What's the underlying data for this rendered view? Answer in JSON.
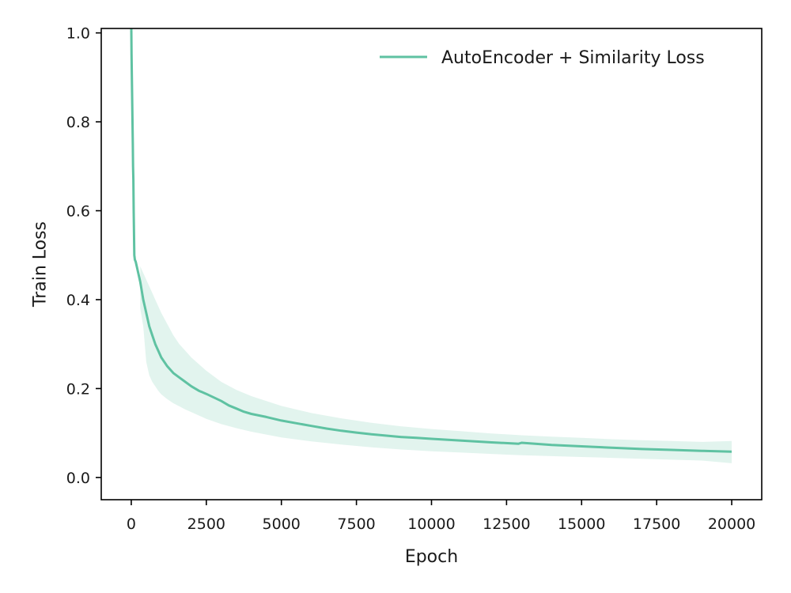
{
  "chart_data": {
    "type": "line",
    "title": "",
    "xlabel": "Epoch",
    "ylabel": "Train Loss",
    "xlim": [
      -1000,
      21000
    ],
    "ylim": [
      -0.05,
      1.01
    ],
    "xticks": [
      0,
      2500,
      5000,
      7500,
      10000,
      12500,
      15000,
      17500,
      20000
    ],
    "xtick_labels": [
      "0",
      "2500",
      "5000",
      "7500",
      "10000",
      "12500",
      "15000",
      "17500",
      "20000"
    ],
    "yticks": [
      0.0,
      0.2,
      0.4,
      0.6,
      0.8,
      1.0
    ],
    "ytick_labels": [
      "0.0",
      "0.2",
      "0.4",
      "0.6",
      "0.8",
      "1.0"
    ],
    "grid": false,
    "legend_position": "top-right",
    "series": [
      {
        "name": "AutoEncoder + Similarity Loss",
        "color": "#5fc2a2",
        "band_color": "#5fc2a2",
        "band_opacity": 0.18,
        "x": [
          0,
          10,
          20,
          30,
          40,
          50,
          60,
          70,
          80,
          90,
          100,
          120,
          150,
          200,
          250,
          300,
          350,
          400,
          500,
          600,
          700,
          800,
          900,
          1000,
          1200,
          1400,
          1600,
          1800,
          2000,
          2250,
          2500,
          2750,
          3000,
          3100,
          3250,
          3500,
          3750,
          4000,
          4500,
          5000,
          5500,
          6000,
          6500,
          7000,
          7500,
          8000,
          8500,
          9000,
          9500,
          10000,
          11000,
          12000,
          12900,
          13000,
          14000,
          15000,
          16000,
          17000,
          18000,
          19000,
          20000
        ],
        "y": [
          1.01,
          0.95,
          0.9,
          0.85,
          0.8,
          0.75,
          0.7,
          0.67,
          0.6,
          0.55,
          0.5,
          0.49,
          0.485,
          0.47,
          0.455,
          0.44,
          0.42,
          0.4,
          0.37,
          0.34,
          0.32,
          0.3,
          0.285,
          0.27,
          0.25,
          0.235,
          0.225,
          0.215,
          0.205,
          0.195,
          0.188,
          0.18,
          0.172,
          0.168,
          0.162,
          0.155,
          0.148,
          0.143,
          0.136,
          0.128,
          0.122,
          0.116,
          0.11,
          0.105,
          0.101,
          0.097,
          0.094,
          0.091,
          0.089,
          0.087,
          0.083,
          0.079,
          0.076,
          0.078,
          0.073,
          0.07,
          0.067,
          0.064,
          0.062,
          0.06,
          0.058
        ],
        "band_x": [
          300,
          400,
          500,
          600,
          700,
          800,
          900,
          1000,
          1200,
          1400,
          1600,
          1800,
          2000,
          2500,
          3000,
          3500,
          4000,
          5000,
          6000,
          7000,
          8000,
          9000,
          10000,
          11000,
          12000,
          13000,
          14000,
          15000,
          16000,
          17000,
          18000,
          19000,
          20000
        ],
        "band_lower": [
          0.38,
          0.34,
          0.26,
          0.23,
          0.215,
          0.205,
          0.195,
          0.187,
          0.176,
          0.167,
          0.16,
          0.153,
          0.147,
          0.132,
          0.12,
          0.111,
          0.103,
          0.09,
          0.081,
          0.074,
          0.068,
          0.063,
          0.059,
          0.056,
          0.053,
          0.05,
          0.048,
          0.046,
          0.044,
          0.042,
          0.04,
          0.038,
          0.032
        ],
        "band_upper": [
          0.475,
          0.46,
          0.445,
          0.43,
          0.415,
          0.4,
          0.385,
          0.37,
          0.345,
          0.32,
          0.3,
          0.285,
          0.27,
          0.24,
          0.215,
          0.197,
          0.183,
          0.161,
          0.145,
          0.133,
          0.123,
          0.115,
          0.109,
          0.104,
          0.099,
          0.095,
          0.092,
          0.089,
          0.086,
          0.084,
          0.082,
          0.08,
          0.082
        ]
      }
    ]
  }
}
